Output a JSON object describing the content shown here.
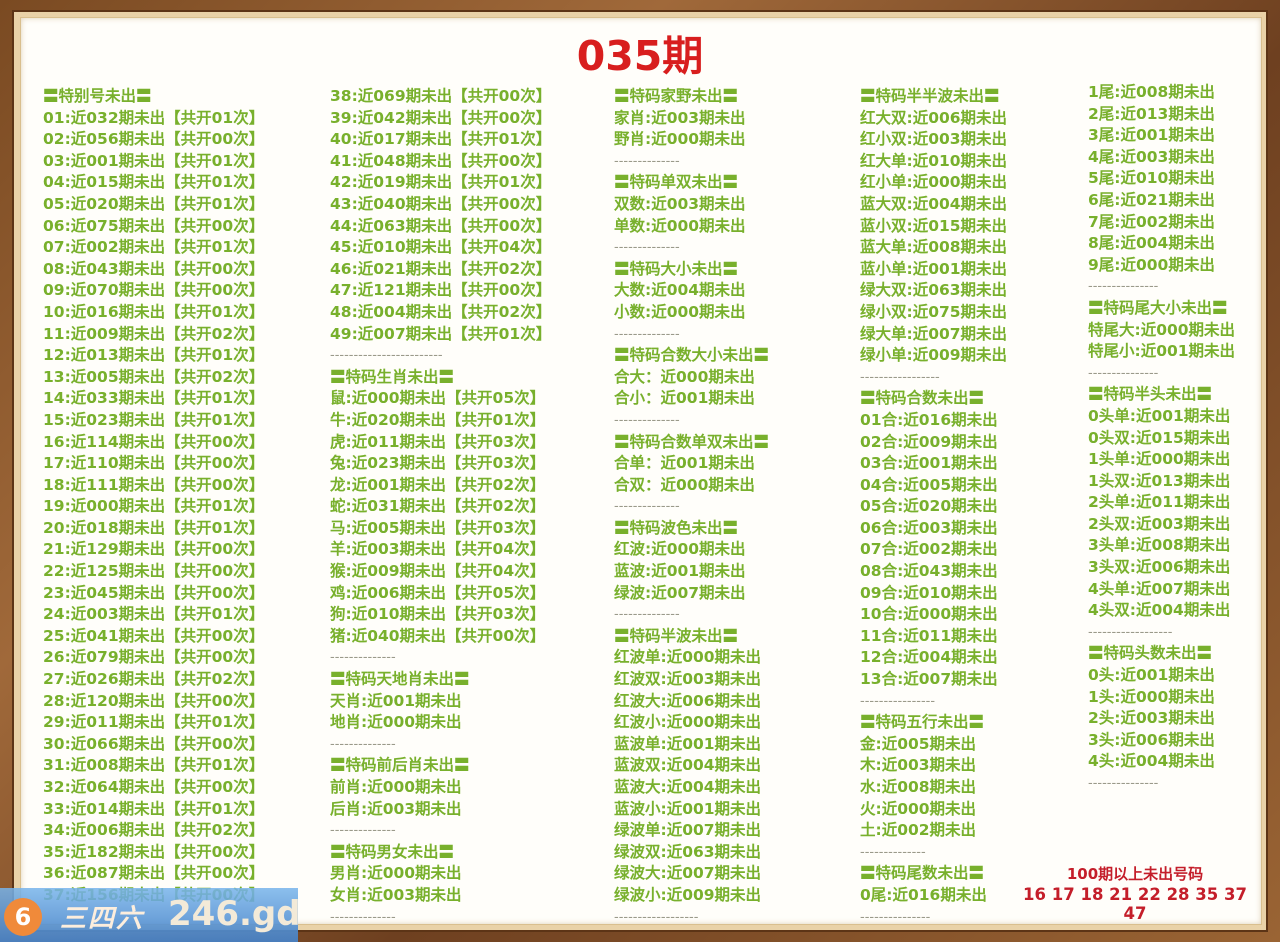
{
  "title": "035期",
  "columns": [
    {
      "lines": [
        {
          "t": "h",
          "text": "〓特别号未出〓"
        },
        {
          "t": "i",
          "text": "01:近032期未出【共开01次】"
        },
        {
          "t": "i",
          "text": "02:近056期未出【共开00次】"
        },
        {
          "t": "i",
          "text": "03:近001期未出【共开01次】"
        },
        {
          "t": "i",
          "text": "04:近015期未出【共开01次】"
        },
        {
          "t": "i",
          "text": "05:近020期未出【共开01次】"
        },
        {
          "t": "i",
          "text": "06:近075期未出【共开00次】"
        },
        {
          "t": "i",
          "text": "07:近002期未出【共开01次】"
        },
        {
          "t": "i",
          "text": "08:近043期未出【共开00次】"
        },
        {
          "t": "i",
          "text": "09:近070期未出【共开00次】"
        },
        {
          "t": "i",
          "text": "10:近016期未出【共开01次】"
        },
        {
          "t": "i",
          "text": "11:近009期未出【共开02次】"
        },
        {
          "t": "i",
          "text": "12:近013期未出【共开01次】"
        },
        {
          "t": "i",
          "text": "13:近005期未出【共开02次】"
        },
        {
          "t": "i",
          "text": "14:近033期未出【共开01次】"
        },
        {
          "t": "i",
          "text": "15:近023期未出【共开01次】"
        },
        {
          "t": "i",
          "text": "16:近114期未出【共开00次】"
        },
        {
          "t": "i",
          "text": "17:近110期未出【共开00次】"
        },
        {
          "t": "i",
          "text": "18:近111期未出【共开00次】"
        },
        {
          "t": "i",
          "text": "19:近000期未出【共开01次】"
        },
        {
          "t": "i",
          "text": "20:近018期未出【共开01次】"
        },
        {
          "t": "i",
          "text": "21:近129期未出【共开00次】"
        },
        {
          "t": "i",
          "text": "22:近125期未出【共开00次】"
        },
        {
          "t": "i",
          "text": "23:近045期未出【共开00次】"
        },
        {
          "t": "i",
          "text": "24:近003期未出【共开01次】"
        },
        {
          "t": "i",
          "text": "25:近041期未出【共开00次】"
        },
        {
          "t": "i",
          "text": "26:近079期未出【共开00次】"
        },
        {
          "t": "i",
          "text": "27:近026期未出【共开02次】"
        },
        {
          "t": "i",
          "text": "28:近120期未出【共开00次】"
        },
        {
          "t": "i",
          "text": "29:近011期未出【共开01次】"
        },
        {
          "t": "i",
          "text": "30:近066期未出【共开00次】"
        },
        {
          "t": "i",
          "text": "31:近008期未出【共开01次】"
        },
        {
          "t": "i",
          "text": "32:近064期未出【共开00次】"
        },
        {
          "t": "i",
          "text": "33:近014期未出【共开01次】"
        },
        {
          "t": "i",
          "text": "34:近006期未出【共开02次】"
        },
        {
          "t": "i",
          "text": "35:近182期未出【共开00次】"
        },
        {
          "t": "i",
          "text": "36:近087期未出【共开00次】"
        },
        {
          "t": "i",
          "text": "37:近156期未出【共开00次】"
        }
      ]
    },
    {
      "lines": [
        {
          "t": "i",
          "text": "38:近069期未出【共开00次】"
        },
        {
          "t": "i",
          "text": "39:近042期未出【共开00次】"
        },
        {
          "t": "i",
          "text": "40:近017期未出【共开01次】"
        },
        {
          "t": "i",
          "text": "41:近048期未出【共开00次】"
        },
        {
          "t": "i",
          "text": "42:近019期未出【共开01次】"
        },
        {
          "t": "i",
          "text": "43:近040期未出【共开00次】"
        },
        {
          "t": "i",
          "text": "44:近063期未出【共开00次】"
        },
        {
          "t": "i",
          "text": "45:近010期未出【共开04次】"
        },
        {
          "t": "i",
          "text": "46:近021期未出【共开02次】"
        },
        {
          "t": "i",
          "text": "47:近121期未出【共开00次】"
        },
        {
          "t": "i",
          "text": "48:近004期未出【共开02次】"
        },
        {
          "t": "i",
          "text": "49:近007期未出【共开01次】"
        },
        {
          "t": "d",
          "text": "------------------------"
        },
        {
          "t": "h",
          "text": "〓特码生肖未出〓"
        },
        {
          "t": "i",
          "text": "鼠:近000期未出【共开05次】"
        },
        {
          "t": "i",
          "text": "牛:近020期未出【共开01次】"
        },
        {
          "t": "i",
          "text": "虎:近011期未出【共开03次】"
        },
        {
          "t": "i",
          "text": "兔:近023期未出【共开03次】"
        },
        {
          "t": "i",
          "text": "龙:近001期未出【共开02次】"
        },
        {
          "t": "i",
          "text": "蛇:近031期未出【共开02次】"
        },
        {
          "t": "i",
          "text": "马:近005期未出【共开03次】"
        },
        {
          "t": "i",
          "text": "羊:近003期未出【共开04次】"
        },
        {
          "t": "i",
          "text": "猴:近009期未出【共开04次】"
        },
        {
          "t": "i",
          "text": "鸡:近006期未出【共开05次】"
        },
        {
          "t": "i",
          "text": "狗:近010期未出【共开03次】"
        },
        {
          "t": "i",
          "text": "猪:近040期未出【共开00次】"
        },
        {
          "t": "d",
          "text": "--------------"
        },
        {
          "t": "h",
          "text": "〓特码天地肖未出〓"
        },
        {
          "t": "i",
          "text": "天肖:近001期未出"
        },
        {
          "t": "i",
          "text": "地肖:近000期未出"
        },
        {
          "t": "d",
          "text": "--------------"
        },
        {
          "t": "h",
          "text": "〓特码前后肖未出〓"
        },
        {
          "t": "i",
          "text": "前肖:近000期未出"
        },
        {
          "t": "i",
          "text": "后肖:近003期未出"
        },
        {
          "t": "d",
          "text": "--------------"
        },
        {
          "t": "h",
          "text": "〓特码男女未出〓"
        },
        {
          "t": "i",
          "text": "男肖:近000期未出"
        },
        {
          "t": "i",
          "text": "女肖:近003期未出"
        },
        {
          "t": "d",
          "text": "--------------"
        }
      ]
    },
    {
      "lines": [
        {
          "t": "h",
          "text": "〓特码家野未出〓"
        },
        {
          "t": "i",
          "text": "家肖:近003期未出"
        },
        {
          "t": "i",
          "text": "野肖:近000期未出"
        },
        {
          "t": "d",
          "text": "--------------"
        },
        {
          "t": "h",
          "text": "〓特码单双未出〓"
        },
        {
          "t": "i",
          "text": "双数:近003期未出"
        },
        {
          "t": "i",
          "text": "单数:近000期未出"
        },
        {
          "t": "d",
          "text": "--------------"
        },
        {
          "t": "h",
          "text": "〓特码大小未出〓"
        },
        {
          "t": "i",
          "text": "大数:近004期未出"
        },
        {
          "t": "i",
          "text": "小数:近000期未出"
        },
        {
          "t": "d",
          "text": "--------------"
        },
        {
          "t": "h",
          "text": "〓特码合数大小未出〓"
        },
        {
          "t": "i",
          "text": "合大：近000期未出"
        },
        {
          "t": "i",
          "text": "合小：近001期未出"
        },
        {
          "t": "d",
          "text": "--------------"
        },
        {
          "t": "h",
          "text": "〓特码合数单双未出〓"
        },
        {
          "t": "i",
          "text": "合单：近001期未出"
        },
        {
          "t": "i",
          "text": "合双：近000期未出"
        },
        {
          "t": "d",
          "text": "--------------"
        },
        {
          "t": "h",
          "text": "〓特码波色未出〓"
        },
        {
          "t": "i",
          "text": "红波:近000期未出"
        },
        {
          "t": "i",
          "text": "蓝波:近001期未出"
        },
        {
          "t": "i",
          "text": "绿波:近007期未出"
        },
        {
          "t": "d",
          "text": "--------------"
        },
        {
          "t": "h",
          "text": "〓特码半波未出〓"
        },
        {
          "t": "i",
          "text": "红波单:近000期未出"
        },
        {
          "t": "i",
          "text": "红波双:近003期未出"
        },
        {
          "t": "i",
          "text": "红波大:近006期未出"
        },
        {
          "t": "i",
          "text": "红波小:近000期未出"
        },
        {
          "t": "i",
          "text": "蓝波单:近001期未出"
        },
        {
          "t": "i",
          "text": "蓝波双:近004期未出"
        },
        {
          "t": "i",
          "text": "蓝波大:近004期未出"
        },
        {
          "t": "i",
          "text": "蓝波小:近001期未出"
        },
        {
          "t": "i",
          "text": "绿波单:近007期未出"
        },
        {
          "t": "i",
          "text": "绿波双:近063期未出"
        },
        {
          "t": "i",
          "text": "绿波大:近007期未出"
        },
        {
          "t": "i",
          "text": "绿波小:近009期未出"
        },
        {
          "t": "d",
          "text": "------------------"
        }
      ]
    },
    {
      "lines": [
        {
          "t": "h",
          "text": "〓特码半半波未出〓"
        },
        {
          "t": "i",
          "text": "红大双:近006期未出"
        },
        {
          "t": "i",
          "text": "红小双:近003期未出"
        },
        {
          "t": "i",
          "text": "红大单:近010期未出"
        },
        {
          "t": "i",
          "text": "红小单:近000期未出"
        },
        {
          "t": "i",
          "text": "蓝大双:近004期未出"
        },
        {
          "t": "i",
          "text": "蓝小双:近015期未出"
        },
        {
          "t": "i",
          "text": "蓝大单:近008期未出"
        },
        {
          "t": "i",
          "text": "蓝小单:近001期未出"
        },
        {
          "t": "i",
          "text": "绿大双:近063期未出"
        },
        {
          "t": "i",
          "text": "绿小双:近075期未出"
        },
        {
          "t": "i",
          "text": "绿大单:近007期未出"
        },
        {
          "t": "i",
          "text": "绿小单:近009期未出"
        },
        {
          "t": "d",
          "text": "-----------------"
        },
        {
          "t": "h",
          "text": "〓特码合数未出〓"
        },
        {
          "t": "i",
          "text": "01合:近016期未出"
        },
        {
          "t": "i",
          "text": "02合:近009期未出"
        },
        {
          "t": "i",
          "text": "03合:近001期未出"
        },
        {
          "t": "i",
          "text": "04合:近005期未出"
        },
        {
          "t": "i",
          "text": "05合:近020期未出"
        },
        {
          "t": "i",
          "text": "06合:近003期未出"
        },
        {
          "t": "i",
          "text": "07合:近002期未出"
        },
        {
          "t": "i",
          "text": "08合:近043期未出"
        },
        {
          "t": "i",
          "text": "09合:近010期未出"
        },
        {
          "t": "i",
          "text": "10合:近000期未出"
        },
        {
          "t": "i",
          "text": "11合:近011期未出"
        },
        {
          "t": "i",
          "text": "12合:近004期未出"
        },
        {
          "t": "i",
          "text": "13合:近007期未出"
        },
        {
          "t": "d",
          "text": "----------------"
        },
        {
          "t": "h",
          "text": "〓特码五行未出〓"
        },
        {
          "t": "i",
          "text": "金:近005期未出"
        },
        {
          "t": "i",
          "text": "木:近003期未出"
        },
        {
          "t": "i",
          "text": "水:近008期未出"
        },
        {
          "t": "i",
          "text": "火:近000期未出"
        },
        {
          "t": "i",
          "text": "土:近002期未出"
        },
        {
          "t": "d",
          "text": "--------------"
        },
        {
          "t": "h",
          "text": "〓特码尾数未出〓"
        },
        {
          "t": "i",
          "text": "0尾:近016期未出"
        },
        {
          "t": "d",
          "text": "---------------"
        }
      ]
    },
    {
      "lines": [
        {
          "t": "i",
          "text": "1尾:近008期未出"
        },
        {
          "t": "i",
          "text": "2尾:近013期未出"
        },
        {
          "t": "i",
          "text": "3尾:近001期未出"
        },
        {
          "t": "i",
          "text": "4尾:近003期未出"
        },
        {
          "t": "i",
          "text": "5尾:近010期未出"
        },
        {
          "t": "i",
          "text": "6尾:近021期未出"
        },
        {
          "t": "i",
          "text": "7尾:近002期未出"
        },
        {
          "t": "i",
          "text": "8尾:近004期未出"
        },
        {
          "t": "i",
          "text": "9尾:近000期未出"
        },
        {
          "t": "d",
          "text": "---------------"
        },
        {
          "t": "h",
          "text": "〓特码尾大小未出〓"
        },
        {
          "t": "i",
          "text": "特尾大:近000期未出"
        },
        {
          "t": "i",
          "text": "特尾小:近001期未出"
        },
        {
          "t": "d",
          "text": "---------------"
        },
        {
          "t": "h",
          "text": "〓特码半头未出〓"
        },
        {
          "t": "i",
          "text": "0头单:近001期未出"
        },
        {
          "t": "i",
          "text": "0头双:近015期未出"
        },
        {
          "t": "i",
          "text": "1头单:近000期未出"
        },
        {
          "t": "i",
          "text": "1头双:近013期未出"
        },
        {
          "t": "i",
          "text": "2头单:近011期未出"
        },
        {
          "t": "i",
          "text": "2头双:近003期未出"
        },
        {
          "t": "i",
          "text": "3头单:近008期未出"
        },
        {
          "t": "i",
          "text": "3头双:近006期未出"
        },
        {
          "t": "i",
          "text": "4头单:近007期未出"
        },
        {
          "t": "i",
          "text": "4头双:近004期未出"
        },
        {
          "t": "d",
          "text": "------------------"
        },
        {
          "t": "h",
          "text": "〓特码头数未出〓"
        },
        {
          "t": "i",
          "text": "0头:近001期未出"
        },
        {
          "t": "i",
          "text": "1头:近000期未出"
        },
        {
          "t": "i",
          "text": "2头:近003期未出"
        },
        {
          "t": "i",
          "text": "3头:近006期未出"
        },
        {
          "t": "i",
          "text": "4头:近004期未出"
        },
        {
          "t": "d",
          "text": "---------------"
        }
      ]
    }
  ],
  "over100": {
    "label": "100期以上未出号码",
    "numbers": "16 17 18 21 22 28 35 37 47"
  },
  "watermark": {
    "logo": "6",
    "brand": "三四六",
    "site": "246.gd"
  },
  "colors": {
    "text": "#78b02c",
    "title": "#d81e1e",
    "highlight": "#c41e2a",
    "frame": "#8b5a2b"
  }
}
